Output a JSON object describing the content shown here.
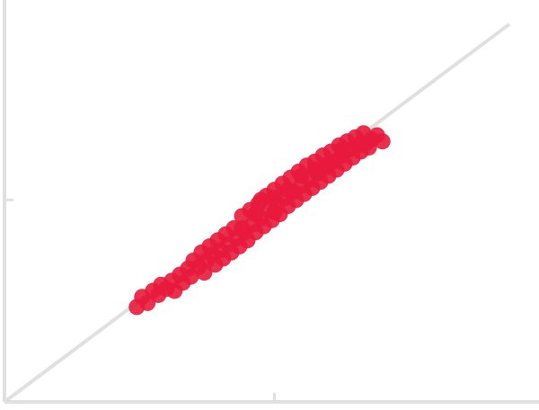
{
  "chart_data": {
    "type": "scatter",
    "color": "#e8193c",
    "xlim": [
      0,
      1.98
    ],
    "ylim": [
      0,
      1.99
    ],
    "xticks": [
      1
    ],
    "yticks": [
      1
    ],
    "reference_line": {
      "x": [
        0,
        1.87
      ],
      "y": [
        0,
        1.87
      ],
      "color": "#e0e0e0"
    },
    "x": [
      0.49,
      0.51,
      0.53,
      0.55,
      0.57,
      0.58,
      0.6,
      0.62,
      0.63,
      0.65,
      0.66,
      0.68,
      0.69,
      0.7,
      0.72,
      0.73,
      0.74,
      0.75,
      0.76,
      0.77,
      0.78,
      0.79,
      0.8,
      0.81,
      0.82,
      0.83,
      0.84,
      0.85,
      0.86,
      0.87,
      0.88,
      0.89,
      0.9,
      0.91,
      0.92,
      0.93,
      0.94,
      0.95,
      0.96,
      0.97,
      0.98,
      0.99,
      1.0,
      1.01,
      1.02,
      1.03,
      1.04,
      1.05,
      1.06,
      1.07,
      1.08,
      1.09,
      1.1,
      1.11,
      1.12,
      1.13,
      1.14,
      1.15,
      1.16,
      1.17,
      1.18,
      1.19,
      1.2,
      1.21,
      1.22,
      1.23,
      1.24,
      1.25,
      1.26,
      1.27,
      1.28,
      1.29,
      1.3,
      1.31,
      1.32,
      1.33,
      1.34,
      1.35,
      1.36,
      1.38,
      1.4,
      0.95,
      1.0,
      1.05,
      1.1,
      1.15,
      1.2,
      1.25,
      1.0,
      0.93,
      0.88
    ],
    "y": [
      0.47,
      0.52,
      0.49,
      0.55,
      0.53,
      0.58,
      0.56,
      0.6,
      0.55,
      0.63,
      0.59,
      0.66,
      0.62,
      0.7,
      0.67,
      0.74,
      0.64,
      0.7,
      0.77,
      0.73,
      0.68,
      0.8,
      0.75,
      0.71,
      0.83,
      0.78,
      0.74,
      0.86,
      0.81,
      0.77,
      0.92,
      0.84,
      0.8,
      0.95,
      0.88,
      0.84,
      0.98,
      0.91,
      0.87,
      1.02,
      0.95,
      0.9,
      1.05,
      0.98,
      0.93,
      1.08,
      1.01,
      0.97,
      1.11,
      1.04,
      1.0,
      1.14,
      1.07,
      1.03,
      1.17,
      1.1,
      1.06,
      1.19,
      1.13,
      1.09,
      1.22,
      1.16,
      1.12,
      1.24,
      1.19,
      1.15,
      1.27,
      1.22,
      1.18,
      1.29,
      1.25,
      1.21,
      1.31,
      1.27,
      1.24,
      1.33,
      1.28,
      1.26,
      1.3,
      1.32,
      1.29,
      1.0,
      0.94,
      1.05,
      1.12,
      1.15,
      1.18,
      1.25,
      1.01,
      0.93,
      0.86
    ]
  }
}
